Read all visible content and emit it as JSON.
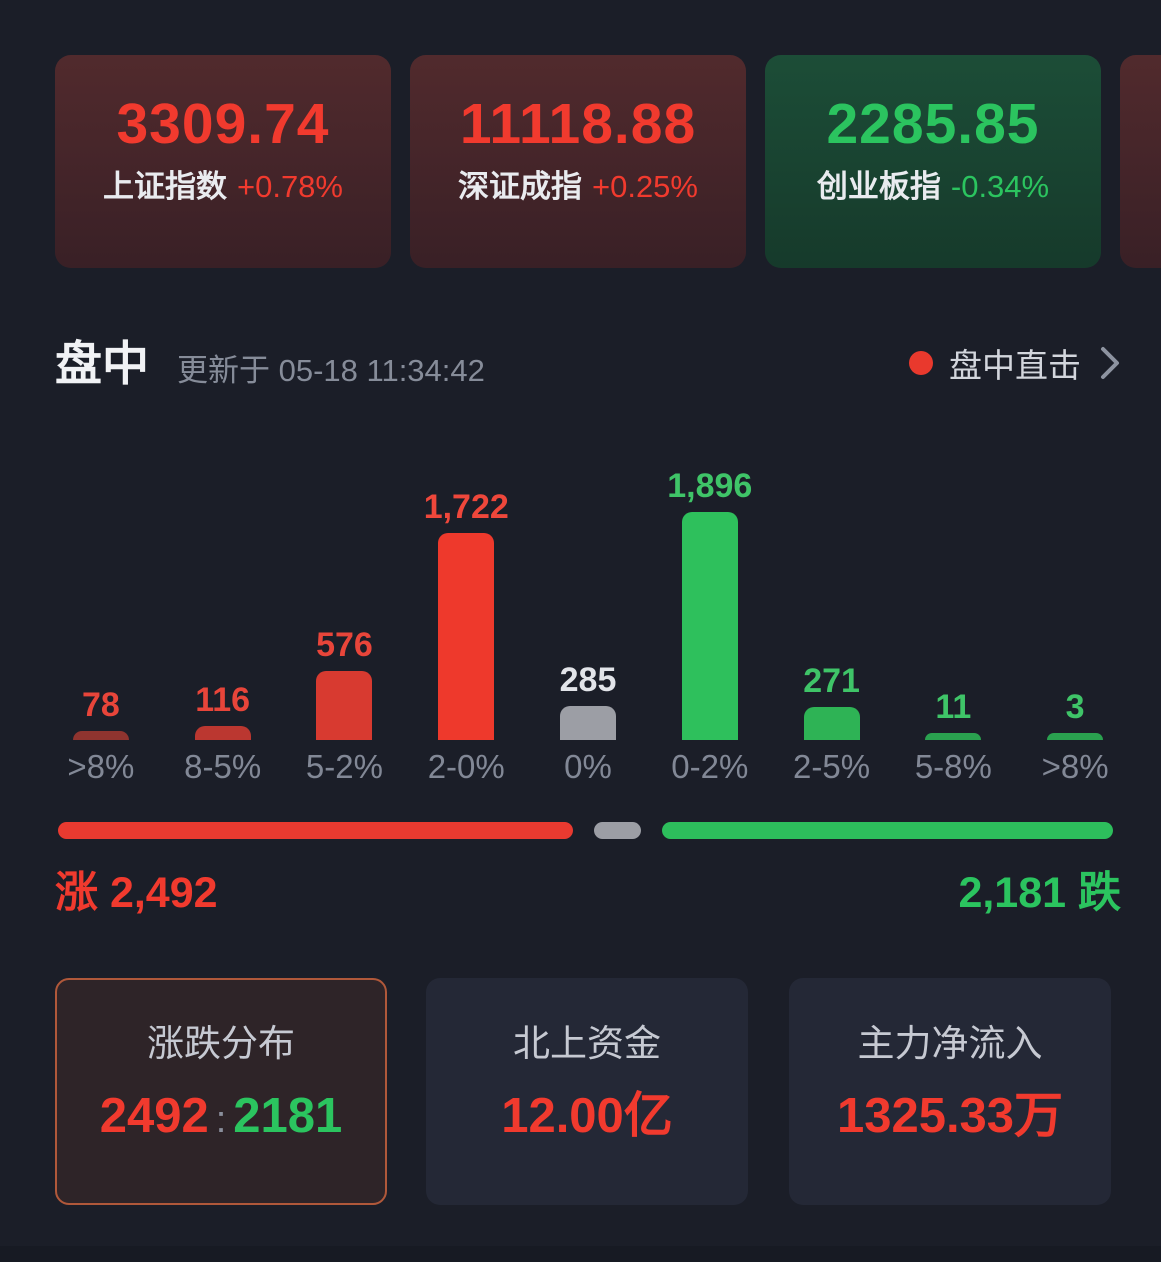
{
  "colors": {
    "background": "#1b1e28",
    "up_red": "#f13a2e",
    "down_green": "#2bc45f",
    "flat_gray": "#9c9ea5",
    "text_white": "#e9ebef",
    "text_gray": "#868c99",
    "selected_card_border": "#b0583a",
    "live_dot": "#e9392d"
  },
  "index_cards": [
    {
      "value": "3309.74",
      "name": "上证指数",
      "change": "+0.78%",
      "trend": "up"
    },
    {
      "value": "11118.88",
      "name": "深证成指",
      "change": "+0.25%",
      "trend": "up"
    },
    {
      "value": "2285.85",
      "name": "创业板指",
      "change": "-0.34%",
      "trend": "down"
    },
    {
      "value": "",
      "name": "",
      "change": "",
      "trend": "up",
      "partial": true
    }
  ],
  "section": {
    "title": "盘中",
    "updated": "更新于 05-18 11:34:42",
    "link_label": "盘中直击"
  },
  "chart_data": {
    "type": "bar",
    "title": "涨跌分布 (number of stocks by price-change bucket)",
    "categories": [
      ">8%",
      "8-5%",
      "5-2%",
      "2-0%",
      "0%",
      "0-2%",
      "2-5%",
      "5-8%",
      ">8%"
    ],
    "values": [
      78,
      116,
      576,
      1722,
      285,
      1896,
      271,
      11,
      3
    ],
    "value_labels": [
      "78",
      "116",
      "576",
      "1,722",
      "285",
      "1,896",
      "271",
      "11",
      "3"
    ],
    "bar_colors": [
      "#8f342f",
      "#bb3730",
      "#d83a30",
      "#ee392c",
      "#9c9ea5",
      "#2ec05c",
      "#2eb355",
      "#2aa14f",
      "#2aa14f"
    ],
    "label_colors": [
      "#e8453a",
      "#e8453a",
      "#e8453a",
      "#ef473b",
      "#e2e4e9",
      "#3fc468",
      "#3fc468",
      "#3fc468",
      "#3fc468"
    ],
    "xlabel": "",
    "ylabel": "",
    "ylim": [
      0,
      1896
    ],
    "grid": false,
    "legend": false
  },
  "breadth_bar": {
    "up": 2492,
    "flat": 285,
    "down": 2181
  },
  "breadth_labels": {
    "up": "涨 2,492",
    "down": "2,181 跌"
  },
  "summary_cards": [
    {
      "title": "涨跌分布",
      "value_up": "2492",
      "separator": ":",
      "value_down": "2181"
    },
    {
      "title": "北上资金",
      "value": "12.00亿"
    },
    {
      "title": "主力净流入",
      "value": "1325.33万"
    }
  ]
}
